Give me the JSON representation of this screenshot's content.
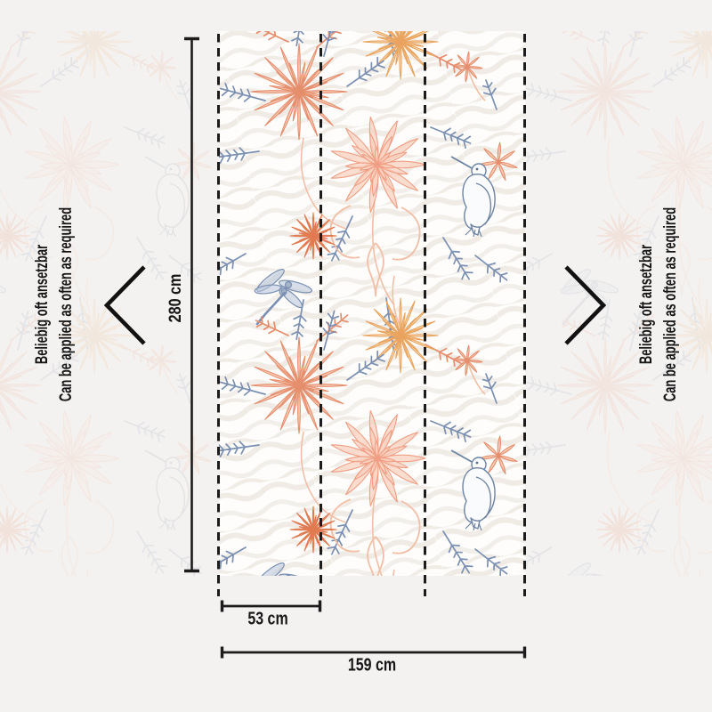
{
  "page": {
    "background_color": "#f4f2f0",
    "line_color": "#1c1c1c"
  },
  "labels": {
    "reapply_de": "Beliebig oft ansetzbar",
    "reapply_en": "Can be applied as often as required"
  },
  "dimensions": {
    "height": "280 cm",
    "panel_width": "53 cm",
    "total_width": "159 cm"
  },
  "icons": {
    "left": "chevron-left-icon",
    "right": "chevron-right-icon"
  },
  "wallpaper": {
    "panel_count": 3,
    "motifs": [
      "chrysanthemum",
      "dahlia",
      "hummingbird",
      "dragonfly",
      "flower-bud",
      "feather-foliage",
      "acanthus-scroll",
      "zebra-stripe-texture"
    ],
    "colors": {
      "coral_line": "#e58e6d",
      "coral_fill": "#f7bb9f",
      "dahlia_line": "#ef9e83",
      "peach_fill": "#fad2c0",
      "apricot_line": "#e9a45f",
      "apricot_fill": "#f9d6a6",
      "bud_line": "#e07b52",
      "bud_fill": "#f1a07e",
      "slate_blue": "#7b90b2",
      "bird_blue": "#6e84a3",
      "coral_soft": "#f2bfa6",
      "texture": "#ece7e0",
      "paper": "#fefdfb"
    }
  }
}
